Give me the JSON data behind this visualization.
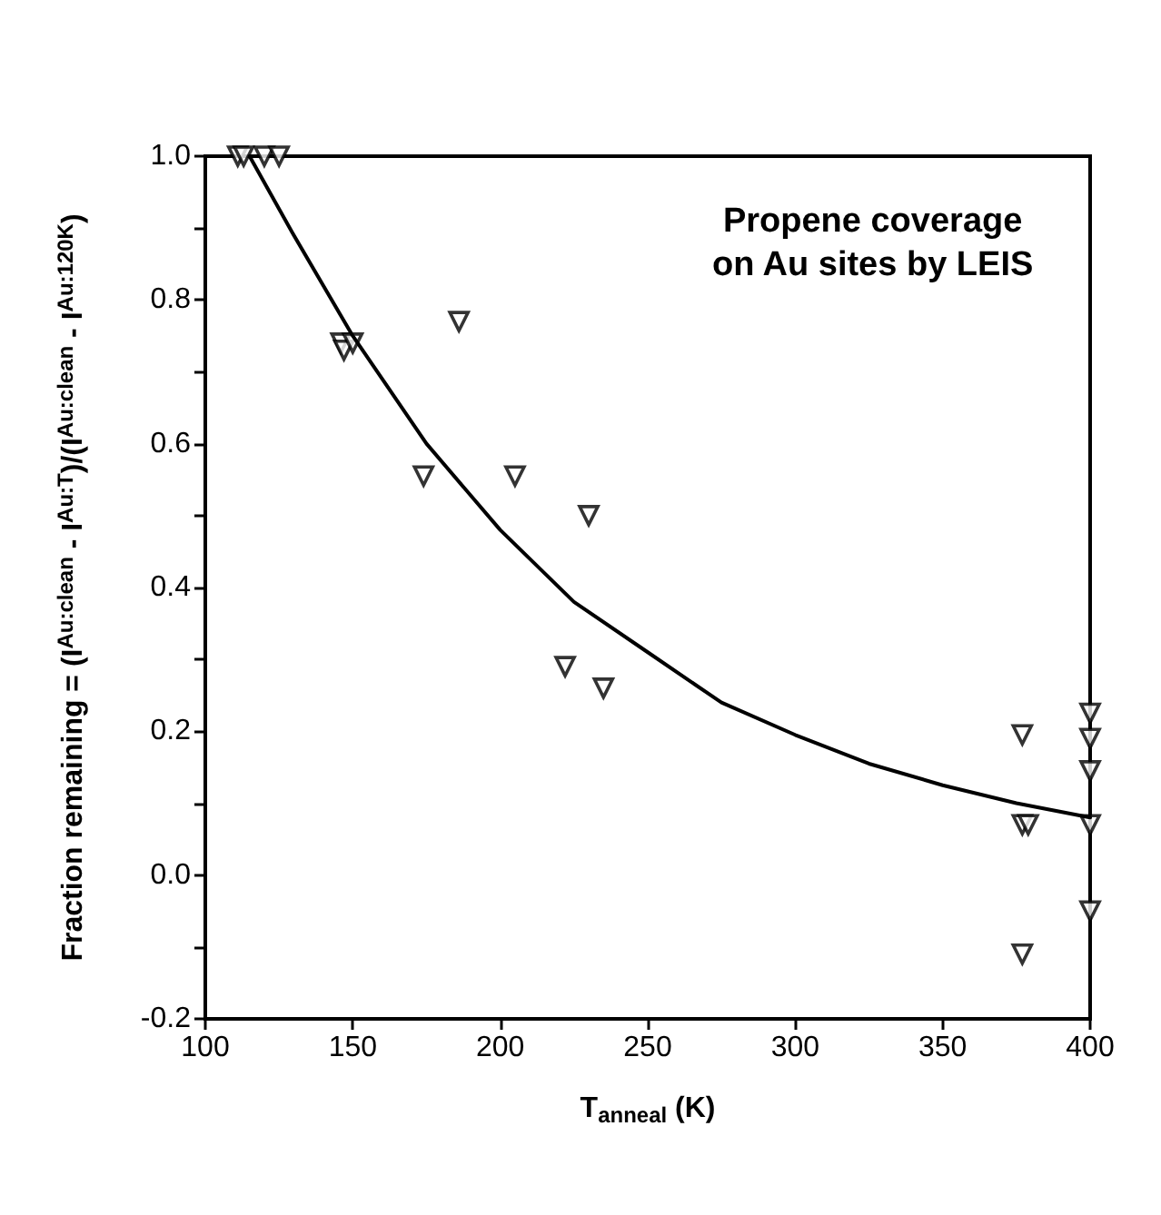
{
  "chart_data": {
    "type": "scatter",
    "xlabel": "T$_{anneal}$ (K)",
    "ylabel": "Fraction remaining = (I$^{Au:clean}$ - I$^{Au:T}$)/(I$^{Au:clean}$ - I$^{Au:120K}$)",
    "annotations": [
      "Propene coverage\non Au sites by LEIS"
    ],
    "series": [
      {
        "color": "#000000",
        "marker": "triangle",
        "x": [
          111,
          113,
          120,
          125,
          146,
          147,
          150,
          186,
          174,
          205,
          230,
          222,
          235,
          377,
          377,
          379,
          377,
          400,
          400,
          400,
          400,
          400
        ],
        "values": [
          1.0,
          1.0,
          1.0,
          1.0,
          0.74,
          0.73,
          0.74,
          0.77,
          0.555,
          0.555,
          0.5,
          0.29,
          0.26,
          0.195,
          0.07,
          0.07,
          -0.11,
          0.225,
          0.19,
          0.145,
          0.07,
          -0.05
        ]
      },
      {
        "type": "line",
        "color": "#000000",
        "marker": "none",
        "line_style": "solid",
        "x": [
          115,
          130,
          150,
          175,
          200,
          225,
          250,
          275,
          300,
          325,
          350,
          375,
          400
        ],
        "values": [
          1.0,
          0.89,
          0.75,
          0.6,
          0.48,
          0.38,
          0.31,
          0.24,
          0.195,
          0.155,
          0.125,
          0.1,
          0.08
        ]
      }
    ],
    "xlim": [
      100,
      400
    ],
    "xticks": [
      100,
      150,
      200,
      250,
      300,
      350,
      400
    ],
    "ylim": [
      -0.2,
      1.0
    ],
    "yticks": [
      {
        "value": -0.2,
        "label": "-0.2"
      },
      {
        "value": -0.1,
        "label": null
      },
      {
        "value": 0,
        "label": "0.0"
      },
      {
        "value": 0.1,
        "label": null
      },
      {
        "value": 0.2,
        "label": "0.2"
      },
      {
        "value": 0.3,
        "label": null
      },
      {
        "value": 0.4,
        "label": "0.4"
      },
      {
        "value": 0.5,
        "label": null
      },
      {
        "value": 0.6,
        "label": "0.6"
      },
      {
        "value": 0.7,
        "label": null
      },
      {
        "value": 0.8,
        "label": "0.8"
      },
      {
        "value": 0.9,
        "label": null
      },
      {
        "value": 1.0,
        "label": "1.0"
      }
    ],
    "grid": false
  }
}
